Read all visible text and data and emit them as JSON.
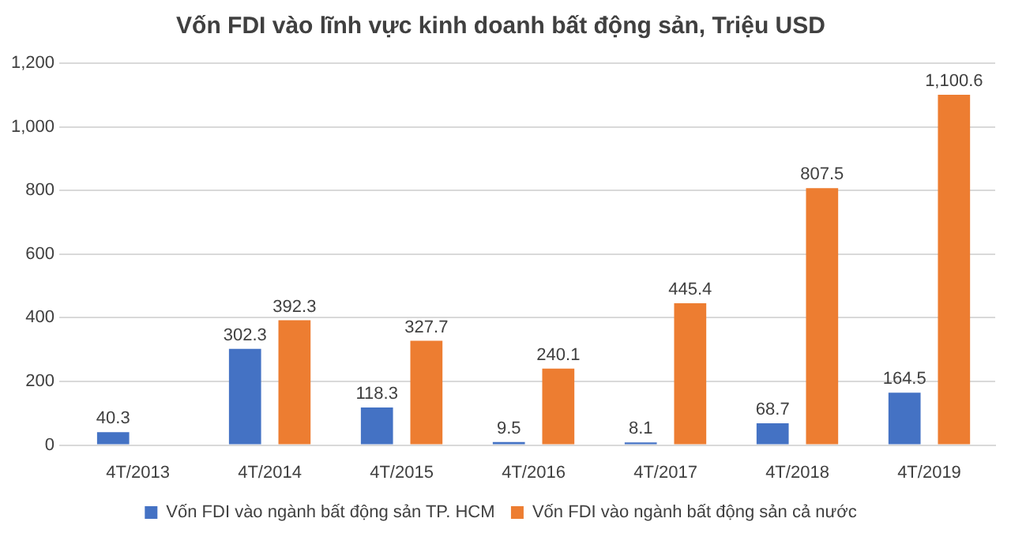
{
  "chart_data": {
    "type": "bar",
    "title": "Vốn FDI vào lĩnh vực kinh doanh bất động sản, Triệu USD",
    "categories": [
      "4T/2013",
      "4T/2014",
      "4T/2015",
      "4T/2016",
      "4T/2017",
      "4T/2018",
      "4T/2019"
    ],
    "series": [
      {
        "name": "Vốn FDI vào ngành bất động sản TP. HCM",
        "color": "#4472c4",
        "values": [
          40.3,
          302.3,
          118.3,
          9.5,
          8.1,
          68.7,
          164.5
        ],
        "value_labels": [
          "40.3",
          "302.3",
          "118.3",
          "9.5",
          "8.1",
          "68.7",
          "164.5"
        ]
      },
      {
        "name": "Vốn FDI vào ngành bất động sản cả nước",
        "color": "#ed7d31",
        "values": [
          null,
          392.3,
          327.7,
          240.1,
          445.4,
          807.5,
          1100.6
        ],
        "value_labels": [
          null,
          "392.3",
          "327.7",
          "240.1",
          "445.4",
          "807.5",
          "1,100.6"
        ]
      }
    ],
    "ylim": [
      0,
      1200
    ],
    "yticks": [
      0,
      {
        "value": 200,
        "label": "200"
      },
      {
        "value": 400,
        "label": "400"
      },
      {
        "value": 600,
        "label": "600"
      },
      {
        "value": 800,
        "label": "800"
      },
      {
        "value": 1000,
        "label": "1,000"
      },
      {
        "value": 1200,
        "label": "1,200"
      }
    ],
    "grid": "y",
    "legend": "bottom"
  }
}
